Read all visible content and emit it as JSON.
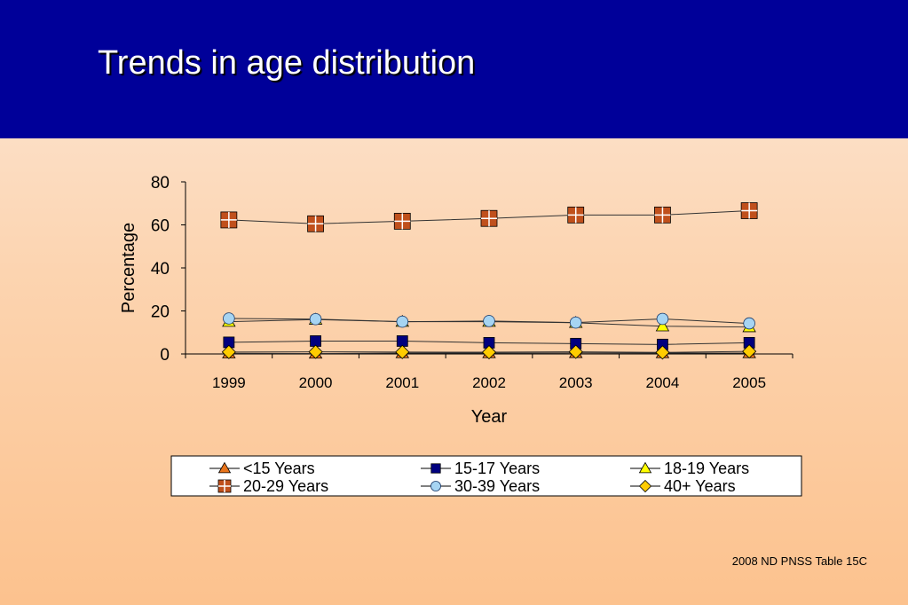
{
  "slide": {
    "title": "Trends in age distribution",
    "source": "2008 ND PNSS Table 15C"
  },
  "chart_data": {
    "type": "line",
    "xlabel": "Year",
    "ylabel": "Percentage",
    "x": [
      "1999",
      "2000",
      "2001",
      "2002",
      "2003",
      "2004",
      "2005"
    ],
    "ylim": [
      0,
      80
    ],
    "yticks": [
      0,
      20,
      40,
      60,
      80
    ],
    "grid": false,
    "legend_position": "bottom",
    "series": [
      {
        "name": "<15 Years",
        "marker": "triangle",
        "color": "#e8741c",
        "values": [
          0.3,
          0.2,
          0.4,
          0.4,
          0.5,
          0.4,
          0.4
        ]
      },
      {
        "name": "15-17 Years",
        "marker": "square",
        "color": "#00007f",
        "values": [
          5.4,
          6.0,
          6.0,
          5.2,
          4.8,
          4.4,
          5.2
        ]
      },
      {
        "name": "18-19 Years",
        "marker": "triangle",
        "color": "#ffff00",
        "values": [
          15.0,
          16.0,
          15.0,
          15.0,
          14.5,
          12.9,
          12.5
        ]
      },
      {
        "name": "20-29 Years",
        "marker": "square-cross",
        "color": "#c0501c",
        "values": [
          62.3,
          60.5,
          61.7,
          63.0,
          64.6,
          64.6,
          66.6
        ]
      },
      {
        "name": "30-39 Years",
        "marker": "circle",
        "color": "#a6d4f2",
        "values": [
          16.5,
          16.2,
          15.0,
          15.3,
          14.6,
          16.3,
          14.2
        ]
      },
      {
        "name": "40+ Years",
        "marker": "diamond",
        "color": "#ffcc00",
        "values": [
          0.9,
          1.0,
          0.9,
          0.8,
          1.0,
          0.7,
          1.2
        ]
      }
    ]
  }
}
